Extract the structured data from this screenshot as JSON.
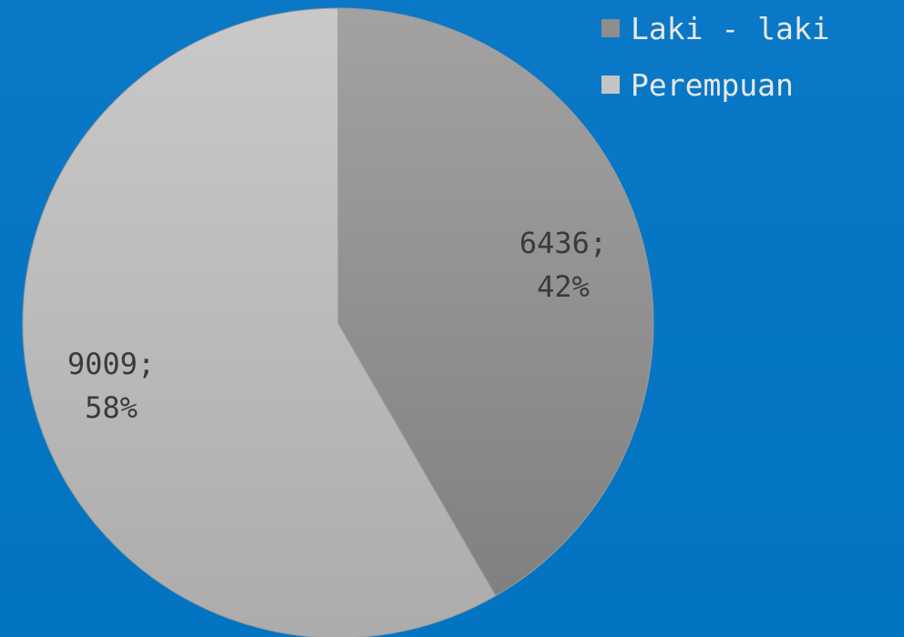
{
  "chart_data": {
    "type": "pie",
    "categories": [
      "Laki - laki",
      "Perempuan"
    ],
    "values": [
      6436,
      9009
    ],
    "percentages": [
      "42%",
      "58%"
    ],
    "data_labels": [
      {
        "value": "6436;",
        "percent": "42%"
      },
      {
        "value": "9009;",
        "percent": "58%"
      }
    ],
    "colors": [
      "#8e8e8e",
      "#bdbdbd"
    ],
    "legend_position": "top-right"
  },
  "legend": {
    "items": [
      {
        "label": "Laki - laki",
        "color": "#8e8e8e"
      },
      {
        "label": "Perempuan",
        "color": "#bdbdbd"
      }
    ]
  }
}
